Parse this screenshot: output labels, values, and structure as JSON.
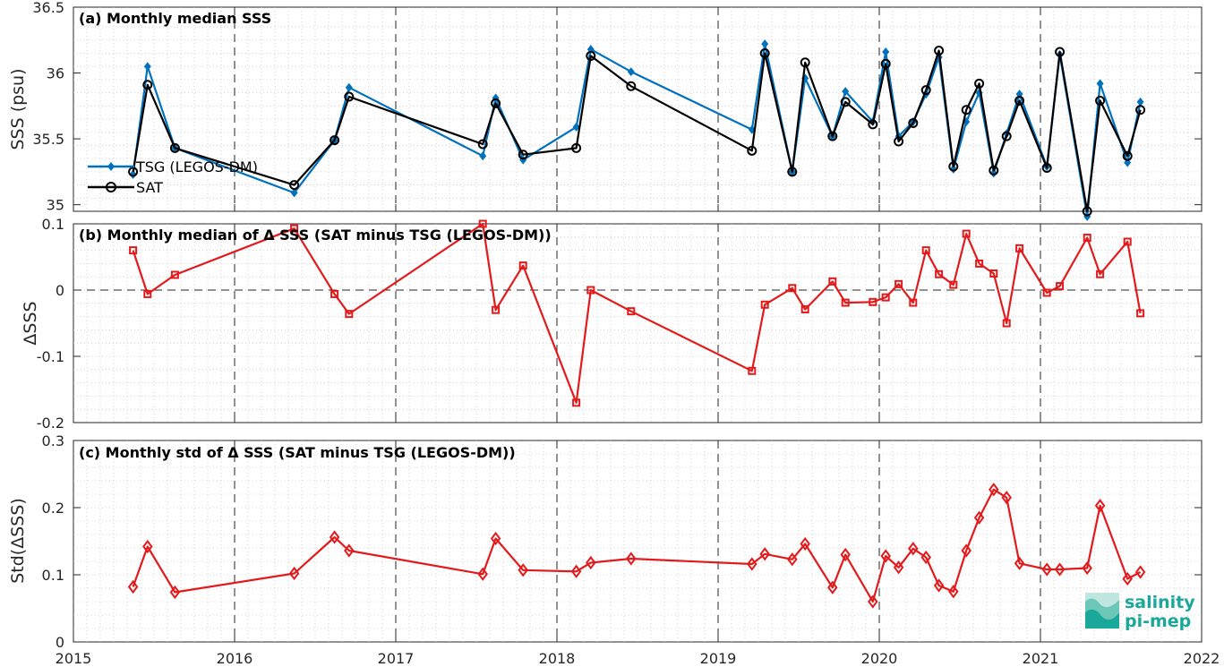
{
  "xaxis": {
    "min": 2015,
    "max": 2022,
    "tick_labels": [
      "2015",
      "2016",
      "2017",
      "2018",
      "2019",
      "2020",
      "2021",
      "2022"
    ]
  },
  "chart_data": [
    {
      "type": "line",
      "title": "(a) Monthly median SSS",
      "ylabel": "SSS (psu)",
      "ylim": [
        34.95,
        36.5
      ],
      "ytick_labels": [
        "35",
        "35.5",
        "36",
        "36.5"
      ],
      "legend": {
        "position": "bottom-left",
        "entries": [
          "TSG (LEGOS-DM)",
          "SAT"
        ]
      },
      "series": [
        {
          "name": "TSG (LEGOS-DM)",
          "color": "#0072BD",
          "marker": "diamond",
          "x": [
            2015.37,
            2015.46,
            2015.63,
            2016.37,
            2016.62,
            2016.71,
            2017.54,
            2017.62,
            2017.79,
            2018.12,
            2018.21,
            2018.46,
            2019.21,
            2019.29,
            2019.46,
            2019.54,
            2019.71,
            2019.79,
            2019.96,
            2020.04,
            2020.12,
            2020.21,
            2020.29,
            2020.37,
            2020.46,
            2020.54,
            2020.62,
            2020.71,
            2020.79,
            2020.87,
            2021.04,
            2021.12,
            2021.29,
            2021.37,
            2021.54,
            2021.62
          ],
          "y": [
            35.23,
            36.05,
            35.43,
            35.09,
            35.49,
            35.89,
            35.37,
            35.81,
            35.34,
            35.59,
            36.18,
            36.01,
            35.57,
            36.22,
            35.25,
            35.96,
            35.52,
            35.86,
            35.63,
            36.16,
            35.52,
            35.63,
            35.84,
            36.12,
            35.27,
            35.63,
            35.85,
            35.24,
            35.54,
            35.84,
            35.29,
            36.14,
            34.91,
            35.92,
            35.32,
            35.78
          ]
        },
        {
          "name": "SAT",
          "color": "#000000",
          "marker": "circle",
          "x": [
            2015.37,
            2015.46,
            2015.63,
            2016.37,
            2016.62,
            2016.71,
            2017.54,
            2017.62,
            2017.79,
            2018.12,
            2018.21,
            2018.46,
            2019.21,
            2019.29,
            2019.46,
            2019.54,
            2019.71,
            2019.79,
            2019.96,
            2020.04,
            2020.12,
            2020.21,
            2020.29,
            2020.37,
            2020.46,
            2020.54,
            2020.62,
            2020.71,
            2020.79,
            2020.87,
            2021.04,
            2021.12,
            2021.29,
            2021.37,
            2021.54,
            2021.62
          ],
          "y": [
            35.25,
            35.91,
            35.43,
            35.15,
            35.49,
            35.82,
            35.46,
            35.77,
            35.38,
            35.43,
            36.13,
            35.9,
            35.41,
            36.15,
            35.25,
            36.08,
            35.52,
            35.78,
            35.61,
            36.07,
            35.48,
            35.62,
            35.87,
            36.17,
            35.29,
            35.72,
            35.92,
            35.26,
            35.52,
            35.79,
            35.28,
            36.16,
            34.95,
            35.79,
            35.37,
            35.72
          ]
        }
      ]
    },
    {
      "type": "line",
      "title": "(b) Monthly median of Δ SSS (SAT minus TSG (LEGOS-DM))",
      "ylabel": "ΔSSS",
      "ylim": [
        -0.2,
        0.1
      ],
      "ytick_labels": [
        "-0.2",
        "-0.1",
        "0",
        "0.1"
      ],
      "series": [
        {
          "color": "#E31A1C",
          "marker": "square",
          "x": [
            2015.37,
            2015.46,
            2015.63,
            2016.37,
            2016.62,
            2016.71,
            2017.54,
            2017.62,
            2017.79,
            2018.12,
            2018.21,
            2018.46,
            2019.21,
            2019.29,
            2019.46,
            2019.54,
            2019.71,
            2019.79,
            2019.96,
            2020.04,
            2020.12,
            2020.21,
            2020.29,
            2020.37,
            2020.46,
            2020.54,
            2020.62,
            2020.71,
            2020.79,
            2020.87,
            2021.04,
            2021.12,
            2021.29,
            2021.37,
            2021.54,
            2021.62
          ],
          "y": [
            0.06,
            -0.006,
            0.023,
            0.093,
            -0.006,
            -0.036,
            0.1,
            -0.03,
            0.037,
            -0.17,
            0.0,
            -0.032,
            -0.122,
            -0.022,
            0.003,
            -0.029,
            0.013,
            -0.019,
            -0.018,
            -0.011,
            0.009,
            -0.019,
            0.06,
            0.024,
            0.008,
            0.085,
            0.04,
            0.025,
            -0.05,
            0.063,
            -0.004,
            0.006,
            0.079,
            0.024,
            0.073,
            -0.035
          ]
        }
      ]
    },
    {
      "type": "line",
      "title": "(c) Monthly std of Δ SSS (SAT minus TSG (LEGOS-DM))",
      "ylabel": "Std(ΔSSS)",
      "ylim": [
        0,
        0.3
      ],
      "ytick_labels": [
        "0",
        "0.1",
        "0.2",
        "0.3"
      ],
      "series": [
        {
          "color": "#E31A1C",
          "marker": "diamond",
          "x": [
            2015.37,
            2015.46,
            2015.63,
            2016.37,
            2016.62,
            2016.71,
            2017.54,
            2017.62,
            2017.79,
            2018.12,
            2018.21,
            2018.46,
            2019.21,
            2019.29,
            2019.46,
            2019.54,
            2019.71,
            2019.79,
            2019.96,
            2020.04,
            2020.12,
            2020.21,
            2020.29,
            2020.37,
            2020.46,
            2020.54,
            2020.62,
            2020.71,
            2020.79,
            2020.87,
            2021.04,
            2021.12,
            2021.29,
            2021.37,
            2021.54,
            2021.62
          ],
          "y": [
            0.082,
            0.142,
            0.074,
            0.102,
            0.156,
            0.136,
            0.101,
            0.154,
            0.107,
            0.105,
            0.118,
            0.124,
            0.116,
            0.131,
            0.123,
            0.146,
            0.081,
            0.13,
            0.06,
            0.128,
            0.111,
            0.139,
            0.126,
            0.084,
            0.075,
            0.136,
            0.185,
            0.227,
            0.215,
            0.117,
            0.108,
            0.108,
            0.11,
            0.203,
            0.094,
            0.104
          ]
        }
      ]
    }
  ],
  "logo": {
    "line1": "salinity",
    "line2": "pi-mep",
    "color": "#1aa89a"
  }
}
